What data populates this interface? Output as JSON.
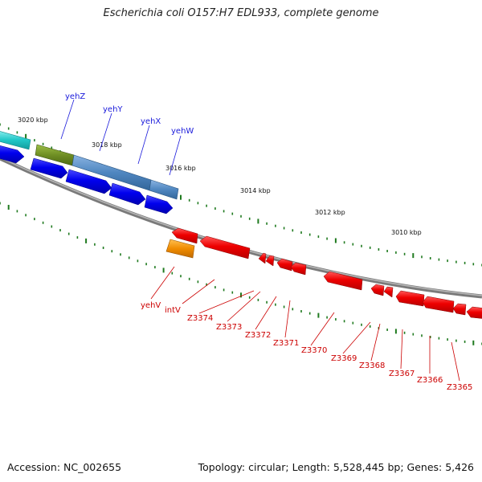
{
  "title": "Escherichia coli O157:H7 EDL933, complete genome",
  "accession": "Accession: NC_002655",
  "summary": "Topology: circular; Length: 5,528,445 bp; Genes: 5,426",
  "scale_labels": [
    "3020 kbp",
    "3018 kbp",
    "3016 kbp",
    "3014 kbp",
    "3012 kbp",
    "3010 kbp"
  ],
  "forward_genes": [
    "yehZ",
    "yehY",
    "yehX",
    "yehW"
  ],
  "reverse_genes": [
    "yehV",
    "intV",
    "Z3374",
    "Z3373",
    "Z3372",
    "Z3371",
    "Z3370",
    "Z3369",
    "Z3368",
    "Z3367",
    "Z3366",
    "Z3365"
  ],
  "colors": {
    "forward_label": "#1a1adb",
    "reverse_label": "#cc0000",
    "cds_forward": "#0000ee",
    "cds_reverse": "#ee0000",
    "tick": "#1f7a1f",
    "backbone": "#808080",
    "gene_cyan": "#22c8c8",
    "gene_olive": "#6f8e24",
    "gene_steel": "#4f86c0",
    "gene_orange": "#f08c00"
  }
}
